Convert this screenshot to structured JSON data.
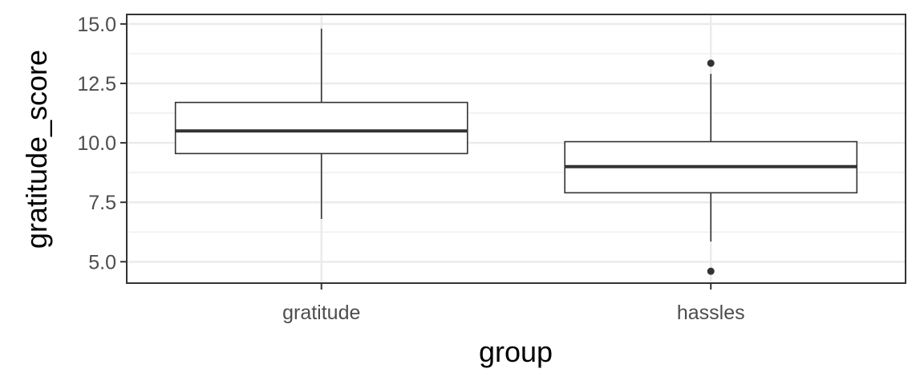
{
  "chart_data": {
    "type": "boxplot",
    "title": "",
    "xlabel": "group",
    "ylabel": "gratitude_score",
    "categories": [
      "gratitude",
      "hassles"
    ],
    "ylim": [
      4.1,
      15.4
    ],
    "yticks": [
      5.0,
      7.5,
      10.0,
      12.5,
      15.0
    ],
    "ytick_labels": [
      "5.0",
      "7.5",
      "10.0",
      "12.5",
      "15.0"
    ],
    "grid": true,
    "boxes": [
      {
        "category": "gratitude",
        "whisker_low": 6.8,
        "q1": 9.55,
        "median": 10.5,
        "q3": 11.7,
        "whisker_high": 14.8,
        "outliers": []
      },
      {
        "category": "hassles",
        "whisker_low": 5.85,
        "q1": 7.9,
        "median": 9.0,
        "q3": 10.05,
        "whisker_high": 12.9,
        "outliers": [
          4.6,
          13.35
        ]
      }
    ],
    "colors": {
      "box_fill": "#ffffff",
      "box_stroke": "#333333",
      "grid": "#ebebeb",
      "panel_border": "#333333"
    }
  }
}
